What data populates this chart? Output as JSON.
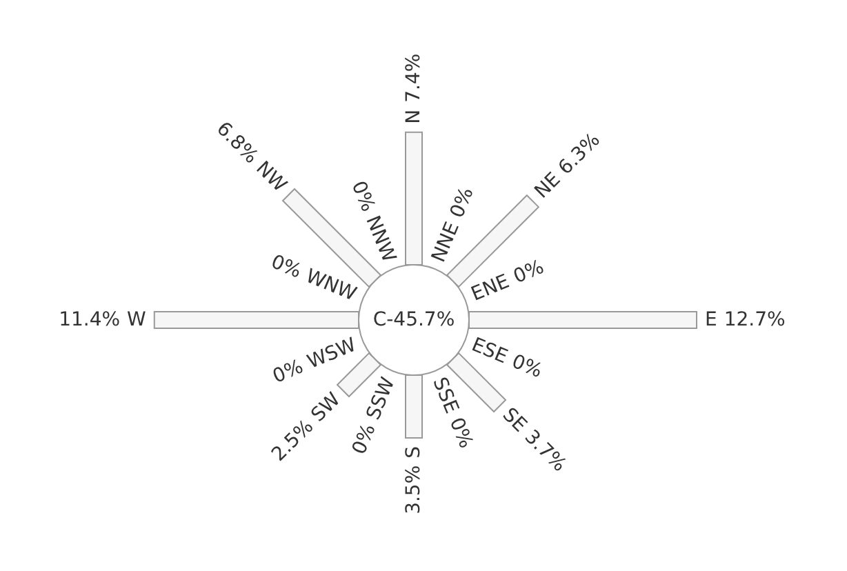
{
  "chart_data": {
    "type": "other",
    "categories": [
      "N",
      "NNE",
      "NE",
      "ENE",
      "E",
      "ESE",
      "SE",
      "SSE",
      "S",
      "SSW",
      "SW",
      "WSW",
      "W",
      "WNW",
      "NW",
      "NNW"
    ],
    "values": [
      7.4,
      0,
      6.3,
      0,
      12.7,
      0,
      3.7,
      0,
      3.5,
      0,
      2.5,
      0,
      11.4,
      0,
      6.8,
      0
    ],
    "value_labels": [
      "7.4%",
      "0%",
      "6.3%",
      "0%",
      "12.7%",
      "0%",
      "3.7%",
      "0%",
      "3.5%",
      "0%",
      "2.5%",
      "0%",
      "11.4%",
      "0%",
      "6.8%",
      "0%"
    ],
    "color": "#999999",
    "annotations": [
      "C-45.7%"
    ]
  }
}
